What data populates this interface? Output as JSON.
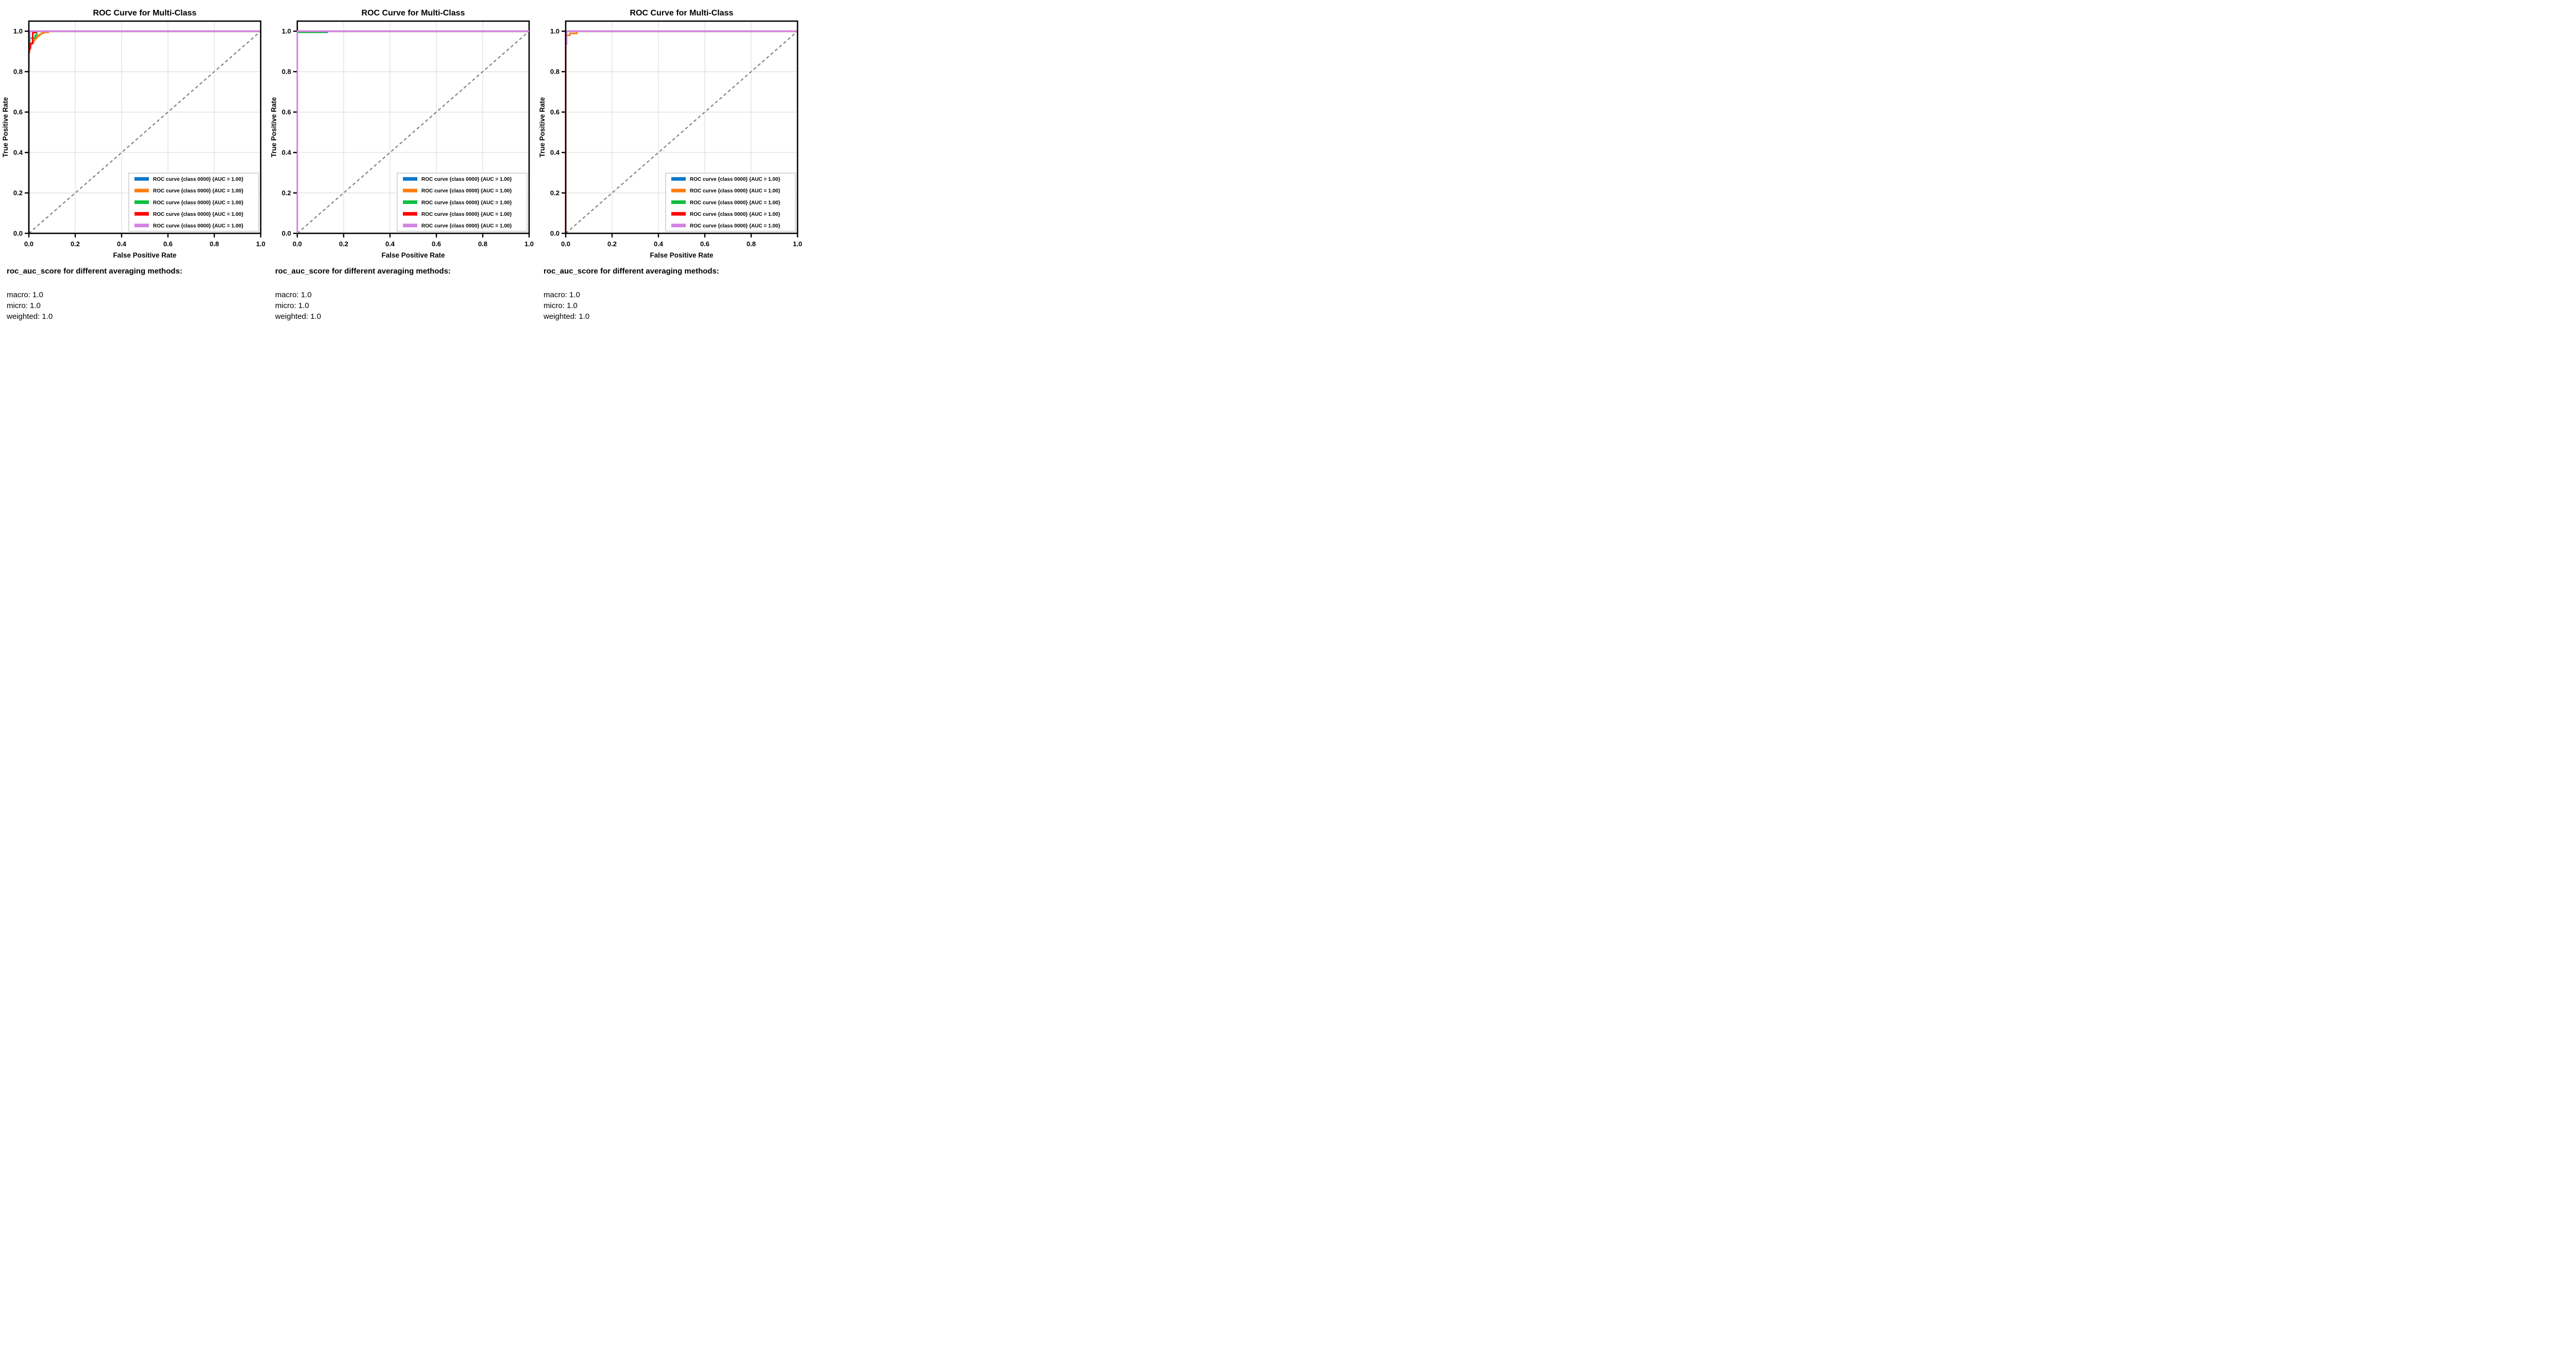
{
  "page": {
    "background": "#ffffff"
  },
  "style": {
    "grid_color": "#dcdcdc",
    "spine_color": "#000000",
    "diagonal_color": "#808080",
    "legend_border_color": "#cccccc",
    "text_color": "#000000"
  },
  "chart_data": [
    {
      "type": "line",
      "kind": "roc-curve",
      "title": "ROC Curve for Multi-Class",
      "xlabel": "False Positive Rate",
      "ylabel": "True Positive Rate",
      "xlim": [
        0,
        1
      ],
      "ylim": [
        0,
        1.05
      ],
      "x_ticks": [
        "0.0",
        "0.2",
        "0.4",
        "0.6",
        "0.8",
        "1.0"
      ],
      "y_ticks": [
        "0.0",
        "0.2",
        "0.4",
        "0.6",
        "0.8",
        "1.0"
      ],
      "grid": true,
      "legend_position": "lower right",
      "diagonal_reference": {
        "from": [
          0,
          0
        ],
        "to": [
          1,
          1
        ],
        "color": "#808080",
        "style": "dashed"
      },
      "series": [
        {
          "name": "roc-curve-1",
          "label": "ROC curve {class 0000} {AUC = 1.00}",
          "auc": 1.0,
          "color": "#0e76c8",
          "above_spine": false,
          "points": [
            [
              0,
              0
            ],
            [
              0,
              1
            ],
            [
              1,
              1
            ]
          ]
        },
        {
          "name": "roc-curve-2",
          "label": "ROC curve {class 0000} {AUC = 1.00}",
          "auc": 1.0,
          "color": "#ff7d0e",
          "above_spine": false,
          "points": [
            [
              0,
              0
            ],
            [
              0,
              0.895
            ],
            [
              0.003,
              0.895
            ],
            [
              0.003,
              0.922
            ],
            [
              0.005,
              0.922
            ],
            [
              0.005,
              0.931
            ],
            [
              0.009,
              0.931
            ],
            [
              0.009,
              0.938
            ],
            [
              0.014,
              0.938
            ],
            [
              0.014,
              0.945
            ],
            [
              0.02,
              0.945
            ],
            [
              0.02,
              0.955
            ],
            [
              0.026,
              0.955
            ],
            [
              0.026,
              0.963
            ],
            [
              0.032,
              0.963
            ],
            [
              0.032,
              0.97
            ],
            [
              0.038,
              0.97
            ],
            [
              0.038,
              0.977
            ],
            [
              0.045,
              0.977
            ],
            [
              0.045,
              0.984
            ],
            [
              0.054,
              0.984
            ],
            [
              0.054,
              0.99
            ],
            [
              0.064,
              0.99
            ],
            [
              0.064,
              0.995
            ],
            [
              0.084,
              0.995
            ],
            [
              0.084,
              1
            ],
            [
              1,
              1
            ]
          ]
        },
        {
          "name": "roc-curve-3",
          "label": "ROC curve {class 0000} {AUC = 1.00}",
          "auc": 1.0,
          "color": "#0fbf3f",
          "above_spine": false,
          "points": [
            [
              0,
              0
            ],
            [
              0,
              0.944
            ],
            [
              0.003,
              0.944
            ],
            [
              0.003,
              0.957
            ],
            [
              0.005,
              0.957
            ],
            [
              0.005,
              0.966
            ],
            [
              0.027,
              0.966
            ],
            [
              0.027,
              0.979
            ],
            [
              0.034,
              0.979
            ],
            [
              0.034,
              1
            ],
            [
              1,
              1
            ]
          ]
        },
        {
          "name": "roc-curve-4",
          "label": "ROC curve {class 0000} {AUC = 1.00}",
          "auc": 1.0,
          "color": "#ff0000",
          "above_spine": false,
          "points": [
            [
              0,
              0
            ],
            [
              0,
              0.908
            ],
            [
              0.003,
              0.908
            ],
            [
              0.003,
              0.915
            ],
            [
              0.007,
              0.915
            ],
            [
              0.007,
              0.94
            ],
            [
              0.017,
              0.94
            ],
            [
              0.017,
              0.993
            ],
            [
              0.03,
              0.993
            ],
            [
              0.03,
              1
            ],
            [
              1,
              1
            ]
          ]
        },
        {
          "name": "roc-curve-5",
          "label": "ROC curve {class 0000} {AUC = 1.00}",
          "auc": 1.0,
          "color": "#d383e2",
          "above_spine": false,
          "points": [
            [
              0,
              0
            ],
            [
              0,
              0.957
            ],
            [
              0.004,
              0.957
            ],
            [
              0.004,
              1
            ],
            [
              1,
              1
            ]
          ]
        }
      ],
      "score_block": {
        "heading": "roc_auc_score for different averaging methods:",
        "lines": [
          "macro: 1.0",
          "micro: 1.0",
          "weighted: 1.0"
        ]
      }
    },
    {
      "type": "line",
      "kind": "roc-curve",
      "title": "ROC Curve for Multi-Class",
      "xlabel": "False Positive Rate",
      "ylabel": "True Positive Rate",
      "xlim": [
        0,
        1
      ],
      "ylim": [
        0,
        1.05
      ],
      "x_ticks": [
        "0.0",
        "0.2",
        "0.4",
        "0.6",
        "0.8",
        "1.0"
      ],
      "y_ticks": [
        "0.0",
        "0.2",
        "0.4",
        "0.6",
        "0.8",
        "1.0"
      ],
      "grid": true,
      "legend_position": "lower right",
      "diagonal_reference": {
        "from": [
          0,
          0
        ],
        "to": [
          1,
          1
        ],
        "color": "#808080",
        "style": "dashed"
      },
      "series": [
        {
          "name": "roc-curve-1",
          "label": "ROC curve {class 0000} {AUC = 1.00}",
          "auc": 1.0,
          "color": "#0e76c8",
          "above_spine": false,
          "points": [
            [
              0,
              0
            ],
            [
              0,
              0.995
            ],
            [
              0.128,
              0.995
            ],
            [
              0.128,
              1
            ],
            [
              1,
              1
            ]
          ]
        },
        {
          "name": "roc-curve-2",
          "label": "ROC curve {class 0000} {AUC = 1.00}",
          "auc": 1.0,
          "color": "#ff7d0e",
          "above_spine": false,
          "points": [
            [
              0,
              0
            ],
            [
              0,
              1
            ],
            [
              1,
              1
            ]
          ]
        },
        {
          "name": "roc-curve-3",
          "label": "ROC curve {class 0000} {AUC = 1.00}",
          "auc": 1.0,
          "color": "#0fbf3f",
          "above_spine": false,
          "points": [
            [
              0,
              0
            ],
            [
              0,
              0.995
            ],
            [
              0.119,
              0.995
            ],
            [
              0.119,
              1
            ],
            [
              1,
              1
            ]
          ]
        },
        {
          "name": "roc-curve-4",
          "label": "ROC curve {class 0000} {AUC = 1.00}",
          "auc": 1.0,
          "color": "#ff0000",
          "above_spine": false,
          "points": [
            [
              0,
              0
            ],
            [
              0,
              1
            ],
            [
              1,
              1
            ]
          ]
        },
        {
          "name": "roc-curve-5",
          "label": "ROC curve {class 0000} {AUC = 1.00}",
          "auc": 1.0,
          "color": "#d383e2",
          "above_spine": true,
          "points": [
            [
              0,
              0
            ],
            [
              0,
              1
            ],
            [
              1,
              1
            ]
          ]
        }
      ],
      "score_block": {
        "heading": "roc_auc_score for different averaging methods:",
        "lines": [
          "macro: 1.0",
          "micro: 1.0",
          "weighted: 1.0"
        ]
      }
    },
    {
      "type": "line",
      "kind": "roc-curve",
      "title": "ROC Curve for Multi-Class",
      "xlabel": "False Positive Rate",
      "ylabel": "True Positive Rate",
      "xlim": [
        0,
        1
      ],
      "ylim": [
        0,
        1.05
      ],
      "x_ticks": [
        "0.0",
        "0.2",
        "0.4",
        "0.6",
        "0.8",
        "1.0"
      ],
      "y_ticks": [
        "0.0",
        "0.2",
        "0.4",
        "0.6",
        "0.8",
        "1.0"
      ],
      "grid": true,
      "legend_position": "lower right",
      "diagonal_reference": {
        "from": [
          0,
          0
        ],
        "to": [
          1,
          1
        ],
        "color": "#808080",
        "style": "dashed"
      },
      "series": [
        {
          "name": "roc-curve-1",
          "label": "ROC curve {class 0000} {AUC = 1.00}",
          "auc": 1.0,
          "color": "#0e76c8",
          "above_spine": false,
          "points": [
            [
              0,
              0
            ],
            [
              0,
              1
            ],
            [
              1,
              1
            ]
          ]
        },
        {
          "name": "roc-curve-2",
          "label": "ROC curve {class 0000} {AUC = 1.00}",
          "auc": 1.0,
          "color": "#ff7d0e",
          "above_spine": false,
          "points": [
            [
              0,
              0
            ],
            [
              0,
              0.972
            ],
            [
              0.003,
              0.972
            ],
            [
              0.003,
              0.98
            ],
            [
              0.018,
              0.98
            ],
            [
              0.018,
              0.989
            ],
            [
              0.048,
              0.989
            ],
            [
              0.048,
              1
            ],
            [
              1,
              1
            ]
          ]
        },
        {
          "name": "roc-curve-3",
          "label": "ROC curve {class 0000} {AUC = 1.00}",
          "auc": 1.0,
          "color": "#0fbf3f",
          "above_spine": false,
          "points": [
            [
              0,
              0
            ],
            [
              0,
              1
            ],
            [
              1,
              1
            ]
          ]
        },
        {
          "name": "roc-curve-4",
          "label": "ROC curve {class 0000} {AUC = 1.00}",
          "auc": 1.0,
          "color": "#ff0000",
          "above_spine": false,
          "points": [
            [
              0,
              0
            ],
            [
              0,
              1
            ],
            [
              1,
              1
            ]
          ]
        },
        {
          "name": "roc-curve-5",
          "label": "ROC curve {class 0000} {AUC = 1.00}",
          "auc": 1.0,
          "color": "#d383e2",
          "above_spine": false,
          "points": [
            [
              0.004,
              0.932
            ],
            [
              0.004,
              1
            ],
            [
              1,
              1
            ]
          ]
        }
      ],
      "score_block": {
        "heading": "roc_auc_score for different averaging methods:",
        "lines": [
          "macro: 1.0",
          "micro: 1.0",
          "weighted: 1.0"
        ]
      }
    }
  ]
}
